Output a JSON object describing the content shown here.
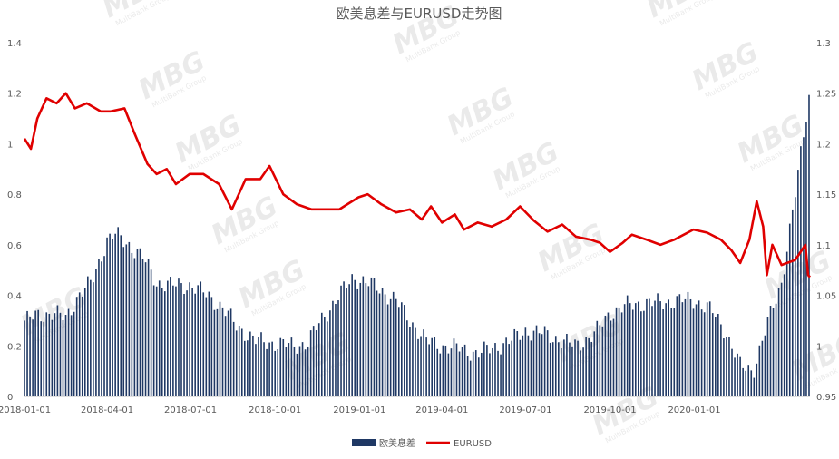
{
  "chart_data": {
    "type": "bar+line",
    "title": "欧美息差与EURUSD走势图",
    "legend": [
      {
        "name": "欧美息差",
        "kind": "bar",
        "color": "#1f3864"
      },
      {
        "name": "EURUSD",
        "kind": "line",
        "color": "#e00000"
      }
    ],
    "legend_position": "bottom-center",
    "grid": false,
    "x_axis": {
      "start": "2018-01-01",
      "end": "2020-05-06",
      "tick_labels": [
        "2018-01-01",
        "2018-04-01",
        "2018-07-01",
        "2018-10-01",
        "2019-01-01",
        "2019-04-01",
        "2019-07-01",
        "2019-10-01",
        "2020-01-01"
      ]
    },
    "y_left": {
      "min": 0,
      "max": 1.4,
      "ticks": [
        "0",
        "0.2",
        "0.4",
        "0.6",
        "0.8",
        "1",
        "1.2",
        "1.4"
      ]
    },
    "y_right": {
      "min": 0.95,
      "max": 1.3,
      "ticks": [
        "0.95",
        "1",
        "1.05",
        "1.1",
        "1.15",
        "1.2",
        "1.25",
        "1.3"
      ]
    },
    "series": [
      {
        "name": "欧美息差",
        "type": "bar",
        "axis": "left",
        "points": [
          [
            "2018-01-01",
            0.3
          ],
          [
            "2018-01-15",
            0.32
          ],
          [
            "2018-02-01",
            0.33
          ],
          [
            "2018-02-15",
            0.31
          ],
          [
            "2018-03-01",
            0.4
          ],
          [
            "2018-03-15",
            0.45
          ],
          [
            "2018-04-01",
            0.62
          ],
          [
            "2018-04-10",
            0.64
          ],
          [
            "2018-04-25",
            0.6
          ],
          [
            "2018-05-10",
            0.55
          ],
          [
            "2018-05-25",
            0.45
          ],
          [
            "2018-06-10",
            0.44
          ],
          [
            "2018-07-01",
            0.44
          ],
          [
            "2018-07-20",
            0.4
          ],
          [
            "2018-08-05",
            0.35
          ],
          [
            "2018-08-20",
            0.28
          ],
          [
            "2018-09-10",
            0.22
          ],
          [
            "2018-10-01",
            0.21
          ],
          [
            "2018-10-20",
            0.2
          ],
          [
            "2018-11-05",
            0.21
          ],
          [
            "2018-11-20",
            0.3
          ],
          [
            "2018-12-10",
            0.4
          ],
          [
            "2018-12-25",
            0.47
          ],
          [
            "2019-01-10",
            0.45
          ],
          [
            "2019-01-25",
            0.42
          ],
          [
            "2019-02-10",
            0.38
          ],
          [
            "2019-02-25",
            0.3
          ],
          [
            "2019-03-15",
            0.22
          ],
          [
            "2019-04-01",
            0.2
          ],
          [
            "2019-04-20",
            0.19
          ],
          [
            "2019-05-10",
            0.17
          ],
          [
            "2019-05-25",
            0.19
          ],
          [
            "2019-06-15",
            0.22
          ],
          [
            "2019-07-01",
            0.26
          ],
          [
            "2019-07-20",
            0.25
          ],
          [
            "2019-08-10",
            0.22
          ],
          [
            "2019-08-25",
            0.2
          ],
          [
            "2019-09-15",
            0.25
          ],
          [
            "2019-10-01",
            0.33
          ],
          [
            "2019-10-20",
            0.36
          ],
          [
            "2019-11-10",
            0.37
          ],
          [
            "2019-11-25",
            0.37
          ],
          [
            "2019-12-15",
            0.38
          ],
          [
            "2020-01-01",
            0.38
          ],
          [
            "2020-01-20",
            0.34
          ],
          [
            "2020-02-05",
            0.25
          ],
          [
            "2020-02-20",
            0.12
          ],
          [
            "2020-03-05",
            0.1
          ],
          [
            "2020-03-20",
            0.28
          ],
          [
            "2020-04-05",
            0.45
          ],
          [
            "2020-04-20",
            0.8
          ],
          [
            "2020-05-05",
            1.19
          ]
        ]
      },
      {
        "name": "EURUSD",
        "type": "line",
        "axis": "right",
        "points": [
          [
            "2018-01-01",
            1.205
          ],
          [
            "2018-01-08",
            1.195
          ],
          [
            "2018-01-15",
            1.225
          ],
          [
            "2018-01-25",
            1.245
          ],
          [
            "2018-02-05",
            1.24
          ],
          [
            "2018-02-15",
            1.25
          ],
          [
            "2018-02-25",
            1.235
          ],
          [
            "2018-03-10",
            1.24
          ],
          [
            "2018-03-25",
            1.232
          ],
          [
            "2018-04-05",
            1.232
          ],
          [
            "2018-04-20",
            1.235
          ],
          [
            "2018-05-01",
            1.21
          ],
          [
            "2018-05-15",
            1.18
          ],
          [
            "2018-05-25",
            1.17
          ],
          [
            "2018-06-05",
            1.175
          ],
          [
            "2018-06-15",
            1.16
          ],
          [
            "2018-06-30",
            1.17
          ],
          [
            "2018-07-15",
            1.17
          ],
          [
            "2018-08-01",
            1.16
          ],
          [
            "2018-08-15",
            1.135
          ],
          [
            "2018-08-30",
            1.165
          ],
          [
            "2018-09-15",
            1.165
          ],
          [
            "2018-09-25",
            1.178
          ],
          [
            "2018-10-10",
            1.15
          ],
          [
            "2018-10-25",
            1.14
          ],
          [
            "2018-11-10",
            1.135
          ],
          [
            "2018-11-25",
            1.135
          ],
          [
            "2018-12-10",
            1.135
          ],
          [
            "2018-12-31",
            1.147
          ],
          [
            "2019-01-10",
            1.15
          ],
          [
            "2019-01-25",
            1.14
          ],
          [
            "2019-02-10",
            1.132
          ],
          [
            "2019-02-25",
            1.135
          ],
          [
            "2019-03-10",
            1.125
          ],
          [
            "2019-03-20",
            1.138
          ],
          [
            "2019-04-01",
            1.122
          ],
          [
            "2019-04-15",
            1.13
          ],
          [
            "2019-04-25",
            1.115
          ],
          [
            "2019-05-10",
            1.122
          ],
          [
            "2019-05-25",
            1.118
          ],
          [
            "2019-06-10",
            1.125
          ],
          [
            "2019-06-25",
            1.138
          ],
          [
            "2019-07-10",
            1.124
          ],
          [
            "2019-07-25",
            1.113
          ],
          [
            "2019-08-10",
            1.12
          ],
          [
            "2019-08-25",
            1.108
          ],
          [
            "2019-09-10",
            1.105
          ],
          [
            "2019-09-20",
            1.102
          ],
          [
            "2019-10-01",
            1.093
          ],
          [
            "2019-10-15",
            1.102
          ],
          [
            "2019-10-25",
            1.11
          ],
          [
            "2019-11-10",
            1.105
          ],
          [
            "2019-11-25",
            1.1
          ],
          [
            "2019-12-10",
            1.105
          ],
          [
            "2019-12-31",
            1.115
          ],
          [
            "2020-01-15",
            1.112
          ],
          [
            "2020-01-30",
            1.105
          ],
          [
            "2020-02-10",
            1.095
          ],
          [
            "2020-02-20",
            1.082
          ],
          [
            "2020-03-01",
            1.105
          ],
          [
            "2020-03-09",
            1.143
          ],
          [
            "2020-03-16",
            1.118
          ],
          [
            "2020-03-20",
            1.07
          ],
          [
            "2020-03-26",
            1.1
          ],
          [
            "2020-04-05",
            1.08
          ],
          [
            "2020-04-20",
            1.085
          ],
          [
            "2020-05-01",
            1.1
          ],
          [
            "2020-05-04",
            1.07
          ],
          [
            "2020-05-06",
            1.068
          ]
        ]
      }
    ]
  },
  "watermark": {
    "text": "MBG",
    "subtext": "MultiBank Group"
  }
}
